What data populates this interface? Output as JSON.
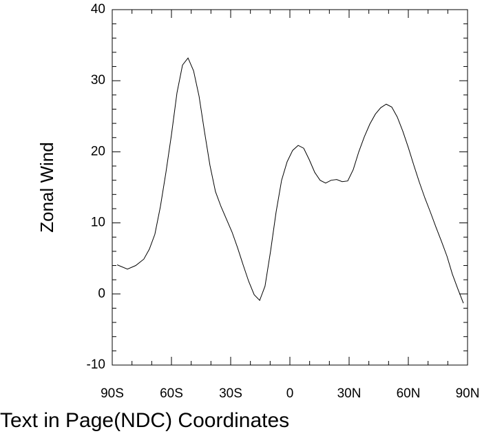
{
  "chart_data": {
    "type": "line",
    "ylabel": "Zonal Wind",
    "annotation": "Text in Page(NDC) Coordinates",
    "x": [
      -87.5,
      -82.3,
      -78.1,
      -74,
      -71.2,
      -68.4,
      -65.6,
      -62.8,
      -60,
      -57.2,
      -54.4,
      -51.6,
      -48.8,
      -46,
      -43.3,
      -40.5,
      -37.7,
      -34.9,
      -32.1,
      -29.3,
      -26.5,
      -23.7,
      -20.9,
      -18.1,
      -15.3,
      -12.6,
      -9.8,
      -7,
      -4.2,
      -1.4,
      1.4,
      4.2,
      7,
      9.8,
      12.6,
      15.3,
      18.1,
      20.9,
      23.7,
      26.5,
      29.3,
      32.1,
      34.9,
      37.7,
      40.5,
      43.3,
      46,
      48.8,
      51.6,
      54.4,
      57.2,
      60,
      62.8,
      65.6,
      68.4,
      71.2,
      74,
      76.8,
      79.6,
      82.3,
      85.1,
      87.9
    ],
    "series": [
      {
        "color": "#000000",
        "values": [
          4.1,
          3.5,
          4.0,
          4.9,
          6.3,
          8.4,
          12.3,
          17.1,
          22.4,
          28.3,
          32.2,
          33.2,
          31.4,
          27.8,
          22.9,
          18.1,
          14.4,
          12.3,
          10.5,
          8.7,
          6.5,
          4.1,
          1.8,
          -0.1,
          -0.9,
          1.1,
          6.0,
          11.5,
          16.0,
          18.6,
          20.2,
          20.9,
          20.5,
          18.9,
          17.1,
          16.0,
          15.6,
          16.0,
          16.1,
          15.8,
          15.9,
          17.5,
          20.0,
          22.1,
          23.9,
          25.3,
          26.2,
          26.7,
          26.3,
          24.9,
          22.9,
          20.6,
          18.1,
          15.7,
          13.5,
          11.5,
          9.4,
          7.4,
          5.3,
          2.8,
          0.7,
          -1.3
        ]
      }
    ],
    "xlim": [
      -90,
      90
    ],
    "xticks": [
      {
        "value": -90,
        "label": "90S"
      },
      {
        "value": -60,
        "label": "60S"
      },
      {
        "value": -30,
        "label": "30S"
      },
      0,
      {
        "value": 30,
        "label": "30N"
      },
      {
        "value": 60,
        "label": "60N"
      },
      {
        "value": 90,
        "label": "90N"
      }
    ],
    "ylim": [
      -10,
      40
    ],
    "yticks": [
      -10,
      0,
      10,
      20,
      30,
      40
    ]
  }
}
